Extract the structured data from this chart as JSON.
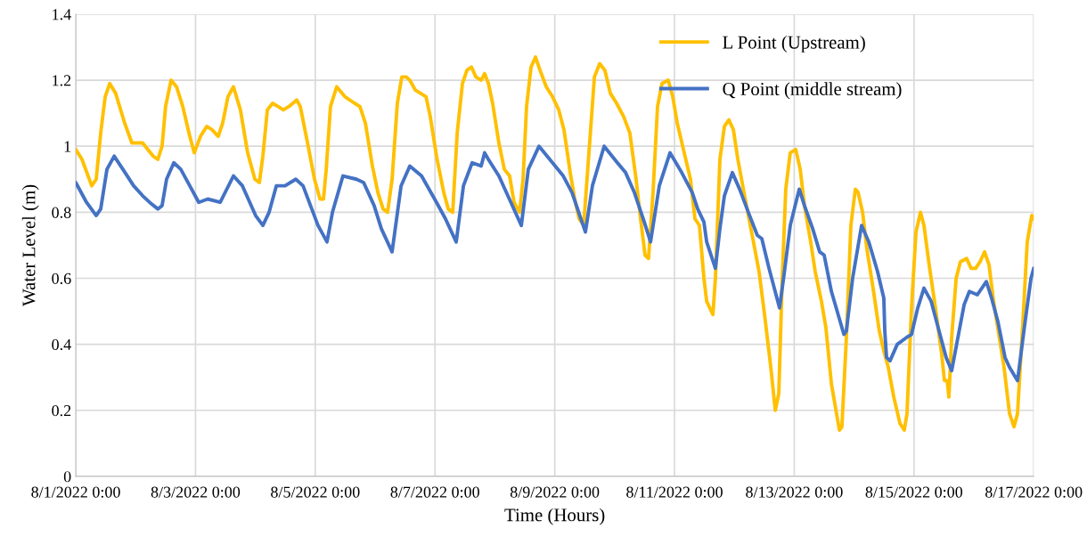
{
  "chart_data": {
    "type": "line",
    "xlabel": "Time (Hours)",
    "ylabel": "Water Level (m)",
    "xlim": [
      "2022-08-01T00:00",
      "2022-08-17T00:00"
    ],
    "ylim": [
      0,
      1.4
    ],
    "xticks": [
      {
        "value": "2022-08-01T00:00",
        "label": "8/1/2022 0:00"
      },
      {
        "value": "2022-08-03T00:00",
        "label": "8/3/2022 0:00"
      },
      {
        "value": "2022-08-05T00:00",
        "label": "8/5/2022 0:00"
      },
      {
        "value": "2022-08-07T00:00",
        "label": "8/7/2022 0:00"
      },
      {
        "value": "2022-08-09T00:00",
        "label": "8/9/2022 0:00"
      },
      {
        "value": "2022-08-11T00:00",
        "label": "8/11/2022 0:00"
      },
      {
        "value": "2022-08-13T00:00",
        "label": "8/13/2022 0:00"
      },
      {
        "value": "2022-08-15T00:00",
        "label": "8/15/2022 0:00"
      },
      {
        "value": "2022-08-17T00:00",
        "label": "8/17/2022 0:00"
      }
    ],
    "yticks": [
      0,
      0.2,
      0.4,
      0.6,
      0.8,
      1,
      1.2,
      1.4
    ],
    "grid": true,
    "legend": "top right",
    "marker": "none",
    "line_style": "solid",
    "series": [
      {
        "name": "L Point (Upstream)",
        "color": "#ffc000",
        "x": [
          "2022-08-01T00:00",
          "2022-08-01T02:30",
          "2022-08-01T06:24",
          "2022-08-01T08:12",
          "2022-08-01T10:00",
          "2022-08-01T11:48",
          "2022-08-01T13:36",
          "2022-08-01T16:00",
          "2022-08-01T19:36",
          "2022-08-01T22:30",
          "2022-08-02T02:48",
          "2022-08-02T07:00",
          "2022-08-02T08:54",
          "2022-08-02T10:36",
          "2022-08-02T12:00",
          "2022-08-02T14:12",
          "2022-08-02T16:24",
          "2022-08-02T18:54",
          "2022-08-02T21:42",
          "2022-08-02T23:30",
          "2022-08-03T02:00",
          "2022-08-03T04:30",
          "2022-08-03T06:36",
          "2022-08-03T09:06",
          "2022-08-03T10:54",
          "2022-08-03T13:00",
          "2022-08-03T15:12",
          "2022-08-03T18:00",
          "2022-08-03T20:54",
          "2022-08-03T23:48",
          "2022-08-04T01:36",
          "2022-08-04T03:00",
          "2022-08-04T04:48",
          "2022-08-04T06:54",
          "2022-08-04T09:06",
          "2022-08-04T11:12",
          "2022-08-04T13:24",
          "2022-08-04T16:36",
          "2022-08-04T18:00",
          "2022-08-04T20:54",
          "2022-08-04T23:42",
          "2022-08-05T01:54",
          "2022-08-05T03:18",
          "2022-08-05T04:24",
          "2022-08-05T06:06",
          "2022-08-05T08:36",
          "2022-08-05T11:54",
          "2022-08-05T15:48",
          "2022-08-05T17:54",
          "2022-08-05T20:06",
          "2022-08-05T22:54",
          "2022-08-06T01:06",
          "2022-08-06T03:12",
          "2022-08-06T05:00",
          "2022-08-06T06:48",
          "2022-08-06T08:54",
          "2022-08-06T10:42",
          "2022-08-06T12:30",
          "2022-08-06T13:54",
          "2022-08-06T16:06",
          "2022-08-06T20:24",
          "2022-08-06T22:06",
          "2022-08-07T00:36",
          "2022-08-07T03:30",
          "2022-08-07T05:18",
          "2022-08-07T07:06",
          "2022-08-07T08:54",
          "2022-08-07T11:00",
          "2022-08-07T12:48",
          "2022-08-07T14:36",
          "2022-08-07T16:24",
          "2022-08-07T18:30",
          "2022-08-07T19:54",
          "2022-08-07T21:24",
          "2022-08-07T23:06",
          "2022-08-08T01:36",
          "2022-08-08T03:48",
          "2022-08-08T05:54",
          "2022-08-08T07:42",
          "2022-08-08T09:54",
          "2022-08-08T11:18",
          "2022-08-08T12:42",
          "2022-08-08T14:30",
          "2022-08-08T16:18",
          "2022-08-08T18:06",
          "2022-08-08T20:36",
          "2022-08-08T23:06",
          "2022-08-09T01:36",
          "2022-08-09T03:42",
          "2022-08-09T06:12",
          "2022-08-09T08:00",
          "2022-08-09T09:48",
          "2022-08-09T11:36",
          "2022-08-09T13:42",
          "2022-08-09T15:54",
          "2022-08-09T18:00",
          "2022-08-09T20:06",
          "2022-08-09T22:18",
          "2022-08-10T00:48",
          "2022-08-10T03:36",
          "2022-08-10T06:06",
          "2022-08-10T08:36",
          "2022-08-10T10:24",
          "2022-08-10T12:12",
          "2022-08-10T13:36",
          "2022-08-10T15:24",
          "2022-08-10T17:12",
          "2022-08-10T19:00",
          "2022-08-10T21:30",
          "2022-08-10T23:18",
          "2022-08-11T01:06",
          "2022-08-11T03:54",
          "2022-08-11T06:24",
          "2022-08-11T08:12",
          "2022-08-11T10:00",
          "2022-08-11T11:48",
          "2022-08-11T12:54",
          "2022-08-11T15:24",
          "2022-08-11T16:24",
          "2022-08-11T18:12",
          "2022-08-11T20:00",
          "2022-08-11T21:48",
          "2022-08-11T23:36",
          "2022-08-12T01:24",
          "2022-08-12T04:36",
          "2022-08-12T07:24",
          "2022-08-12T09:54",
          "2022-08-12T12:06",
          "2022-08-12T14:36",
          "2022-08-12T16:24",
          "2022-08-12T17:48",
          "2022-08-12T19:12",
          "2022-08-12T20:36",
          "2022-08-12T22:24",
          "2022-08-13T00:36",
          "2022-08-13T02:24",
          "2022-08-13T04:06",
          "2022-08-13T06:36",
          "2022-08-13T08:24",
          "2022-08-13T10:54",
          "2022-08-13T12:42",
          "2022-08-13T14:54",
          "2022-08-13T18:06",
          "2022-08-13T19:06",
          "2022-08-13T20:54",
          "2022-08-13T22:42",
          "2022-08-14T00:30",
          "2022-08-14T01:36",
          "2022-08-14T03:24",
          "2022-08-14T05:06",
          "2022-08-14T07:36",
          "2022-08-14T10:06",
          "2022-08-14T11:54",
          "2022-08-14T13:42",
          "2022-08-14T15:54",
          "2022-08-14T18:24",
          "2022-08-14T20:06",
          "2022-08-14T21:12",
          "2022-08-14T23:00",
          "2022-08-15T00:48",
          "2022-08-15T02:36",
          "2022-08-15T04:00",
          "2022-08-15T06:06",
          "2022-08-15T08:36",
          "2022-08-15T11:06",
          "2022-08-15T12:12",
          "2022-08-15T13:18",
          "2022-08-15T14:00",
          "2022-08-15T15:06",
          "2022-08-15T16:54",
          "2022-08-15T18:36",
          "2022-08-15T21:06",
          "2022-08-15T22:54",
          "2022-08-16T00:42",
          "2022-08-16T02:30",
          "2022-08-16T04:18",
          "2022-08-16T06:06",
          "2022-08-16T07:54",
          "2022-08-16T09:36",
          "2022-08-16T12:06",
          "2022-08-16T14:18",
          "2022-08-16T16:06",
          "2022-08-16T17:30",
          "2022-08-16T19:36",
          "2022-08-16T21:24",
          "2022-08-16T23:12",
          "2022-08-17T00:00"
        ],
        "values": [
          0.99,
          0.96,
          0.88,
          0.9,
          1.04,
          1.15,
          1.19,
          1.16,
          1.07,
          1.01,
          1.01,
          0.97,
          0.96,
          1.0,
          1.12,
          1.2,
          1.18,
          1.12,
          1.03,
          0.98,
          1.03,
          1.06,
          1.05,
          1.03,
          1.07,
          1.15,
          1.18,
          1.11,
          0.98,
          0.9,
          0.89,
          0.97,
          1.11,
          1.13,
          1.12,
          1.11,
          1.12,
          1.14,
          1.12,
          1.01,
          0.9,
          0.84,
          0.84,
          0.93,
          1.12,
          1.18,
          1.15,
          1.13,
          1.12,
          1.07,
          0.94,
          0.86,
          0.81,
          0.8,
          0.9,
          1.13,
          1.21,
          1.21,
          1.2,
          1.17,
          1.15,
          1.09,
          0.97,
          0.86,
          0.81,
          0.8,
          1.04,
          1.19,
          1.23,
          1.24,
          1.21,
          1.2,
          1.22,
          1.19,
          1.13,
          1.01,
          0.93,
          0.91,
          0.83,
          0.8,
          0.9,
          1.12,
          1.24,
          1.27,
          1.23,
          1.18,
          1.15,
          1.11,
          1.05,
          0.92,
          0.84,
          0.78,
          0.76,
          0.98,
          1.21,
          1.25,
          1.23,
          1.16,
          1.13,
          1.09,
          1.04,
          0.9,
          0.78,
          0.67,
          0.66,
          0.86,
          1.12,
          1.19,
          1.2,
          1.15,
          1.07,
          0.98,
          0.9,
          0.78,
          0.76,
          0.6,
          0.53,
          0.49,
          0.6,
          0.96,
          1.06,
          1.08,
          1.05,
          0.96,
          0.83,
          0.72,
          0.62,
          0.49,
          0.33,
          0.2,
          0.25,
          0.6,
          0.87,
          0.98,
          0.99,
          0.93,
          0.82,
          0.71,
          0.62,
          0.53,
          0.45,
          0.28,
          0.14,
          0.15,
          0.42,
          0.76,
          0.87,
          0.86,
          0.8,
          0.69,
          0.57,
          0.44,
          0.38,
          0.33,
          0.24,
          0.16,
          0.14,
          0.19,
          0.51,
          0.74,
          0.8,
          0.76,
          0.64,
          0.51,
          0.37,
          0.29,
          0.29,
          0.24,
          0.42,
          0.6,
          0.65,
          0.66,
          0.63,
          0.63,
          0.65,
          0.68,
          0.64,
          0.53,
          0.45,
          0.33,
          0.19,
          0.15,
          0.19,
          0.46,
          0.71,
          0.79,
          0.78
        ]
      },
      {
        "name": "Q Point (middle stream)",
        "color": "#4472c4",
        "x": [
          "2022-08-01T00:00",
          "2022-08-01T04:18",
          "2022-08-01T08:12",
          "2022-08-01T10:00",
          "2022-08-01T12:30",
          "2022-08-01T15:24",
          "2022-08-01T18:54",
          "2022-08-01T23:12",
          "2022-08-02T02:48",
          "2022-08-02T05:36",
          "2022-08-02T08:54",
          "2022-08-02T10:36",
          "2022-08-02T12:24",
          "2022-08-02T15:18",
          "2022-08-02T18:06",
          "2022-08-02T21:42",
          "2022-08-03T01:18",
          "2022-08-03T04:54",
          "2022-08-03T09:54",
          "2022-08-03T15:12",
          "2022-08-03T18:48",
          "2022-08-04T00:06",
          "2022-08-04T03:00",
          "2022-08-04T05:30",
          "2022-08-04T08:24",
          "2022-08-04T11:54",
          "2022-08-04T16:12",
          "2022-08-04T19:06",
          "2022-08-05T01:06",
          "2022-08-05T04:42",
          "2022-08-05T06:54",
          "2022-08-05T11:06",
          "2022-08-05T16:30",
          "2022-08-05T19:24",
          "2022-08-05T23:36",
          "2022-08-06T02:30",
          "2022-08-06T06:48",
          "2022-08-06T10:24",
          "2022-08-06T13:54",
          "2022-08-06T18:36",
          "2022-08-07T00:36",
          "2022-08-07T04:12",
          "2022-08-07T08:30",
          "2022-08-07T11:24",
          "2022-08-07T14:54",
          "2022-08-07T18:30",
          "2022-08-07T19:54",
          "2022-08-07T21:24",
          "2022-08-08T01:36",
          "2022-08-08T05:12",
          "2022-08-08T10:36",
          "2022-08-08T13:24",
          "2022-08-08T17:42",
          "2022-08-08T23:06",
          "2022-08-09T03:24",
          "2022-08-09T06:54",
          "2022-08-09T12:18",
          "2022-08-09T15:06",
          "2022-08-09T19:48",
          "2022-08-10T01:06",
          "2022-08-10T04:24",
          "2022-08-10T07:54",
          "2022-08-10T11:54",
          "2022-08-10T14:24",
          "2022-08-10T17:54",
          "2022-08-10T22:12",
          "2022-08-11T02:54",
          "2022-08-11T07:06",
          "2022-08-11T09:18",
          "2022-08-11T11:48",
          "2022-08-11T12:54",
          "2022-08-11T16:24",
          "2022-08-11T18:12",
          "2022-08-11T20:00",
          "2022-08-11T23:12",
          "2022-08-12T02:06",
          "2022-08-12T05:36",
          "2022-08-12T09:12",
          "2022-08-12T11:00",
          "2022-08-12T13:54",
          "2022-08-12T18:06",
          "2022-08-12T19:54",
          "2022-08-12T22:24",
          "2022-08-13T02:00",
          "2022-08-13T04:06",
          "2022-08-13T07:24",
          "2022-08-13T10:12",
          "2022-08-13T12:00",
          "2022-08-13T14:54",
          "2022-08-13T19:54",
          "2022-08-13T20:54",
          "2022-08-13T23:24",
          "2022-08-14T03:00",
          "2022-08-14T05:54",
          "2022-08-14T09:24",
          "2022-08-14T11:54",
          "2022-08-14T12:18",
          "2022-08-14T13:00",
          "2022-08-14T14:24",
          "2022-08-14T17:18",
          "2022-08-14T20:54",
          "2022-08-14T23:00",
          "2022-08-15T01:30",
          "2022-08-15T04:00",
          "2022-08-15T06:54",
          "2022-08-15T09:42",
          "2022-08-15T12:54",
          "2022-08-15T15:06",
          "2022-08-15T17:36",
          "2022-08-15T20:06",
          "2022-08-15T22:12",
          "2022-08-16T01:24",
          "2022-08-16T05:00",
          "2022-08-16T07:06",
          "2022-08-16T09:36",
          "2022-08-16T12:30",
          "2022-08-16T14:18",
          "2022-08-16T17:30",
          "2022-08-16T20:24",
          "2022-08-16T22:54",
          "2022-08-17T00:00"
        ],
        "values": [
          0.89,
          0.83,
          0.79,
          0.81,
          0.93,
          0.97,
          0.93,
          0.88,
          0.85,
          0.83,
          0.81,
          0.82,
          0.9,
          0.95,
          0.93,
          0.88,
          0.83,
          0.84,
          0.83,
          0.91,
          0.88,
          0.79,
          0.76,
          0.8,
          0.88,
          0.88,
          0.9,
          0.88,
          0.76,
          0.71,
          0.8,
          0.91,
          0.9,
          0.89,
          0.82,
          0.75,
          0.68,
          0.88,
          0.94,
          0.91,
          0.83,
          0.78,
          0.71,
          0.88,
          0.95,
          0.94,
          0.98,
          0.96,
          0.91,
          0.85,
          0.76,
          0.93,
          1.0,
          0.95,
          0.91,
          0.86,
          0.74,
          0.88,
          1.0,
          0.95,
          0.92,
          0.86,
          0.77,
          0.71,
          0.88,
          0.98,
          0.92,
          0.86,
          0.81,
          0.77,
          0.71,
          0.63,
          0.75,
          0.85,
          0.92,
          0.87,
          0.8,
          0.73,
          0.72,
          0.63,
          0.51,
          0.61,
          0.76,
          0.87,
          0.82,
          0.75,
          0.68,
          0.67,
          0.56,
          0.43,
          0.44,
          0.6,
          0.76,
          0.71,
          0.62,
          0.54,
          0.44,
          0.36,
          0.35,
          0.4,
          0.42,
          0.43,
          0.51,
          0.57,
          0.53,
          0.45,
          0.36,
          0.32,
          0.42,
          0.52,
          0.56,
          0.55,
          0.59,
          0.54,
          0.47,
          0.36,
          0.33,
          0.29,
          0.46,
          0.6,
          0.63
        ]
      }
    ]
  }
}
